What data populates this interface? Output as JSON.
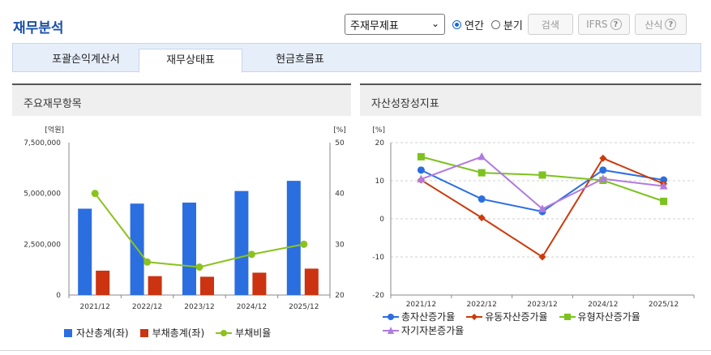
{
  "title": "재무분석",
  "toolbar": {
    "select_value": "주재무제표",
    "radio_annual": "연간",
    "radio_quarter": "분기",
    "search_label": "검색",
    "ifrs_label": "IFRS",
    "formula_label": "산식",
    "help_glyph": "?"
  },
  "tabs": [
    "포괄손익계산서",
    "재무상태표",
    "현금흐름표"
  ],
  "active_tab": 1,
  "left_panel": {
    "title": "주요재무항목"
  },
  "right_panel": {
    "title": "자산성장성지표"
  },
  "colors": {
    "blue": "#2b6ee0",
    "red": "#cc3311",
    "green": "#8cc21e",
    "orange": "#cc3a0a",
    "lime": "#7dc21f",
    "purple": "#b27ae0"
  },
  "chart_data": [
    {
      "type": "bar",
      "title": "",
      "y_unit_label": "[억원]",
      "y2_unit_label": "[%]",
      "categories": [
        "2021/12",
        "2022/12",
        "2023/12",
        "2024/12",
        "2025/12"
      ],
      "ylim": [
        0,
        7500000
      ],
      "yticks": [
        "7,500,000",
        "5,000,000",
        "2,500,000",
        "0"
      ],
      "y2lim": [
        20,
        50
      ],
      "y2ticks": [
        "50",
        "40",
        "30",
        "20"
      ],
      "series": [
        {
          "name": "자산총계(좌)",
          "type": "bar",
          "axis": "left",
          "values": [
            4250000,
            4500000,
            4550000,
            5120000,
            5620000
          ]
        },
        {
          "name": "부채총계(좌)",
          "type": "bar",
          "axis": "left",
          "values": [
            1200000,
            930000,
            900000,
            1100000,
            1300000
          ]
        },
        {
          "name": "부채비율",
          "type": "line",
          "axis": "right",
          "values": [
            40.0,
            26.5,
            25.5,
            28.0,
            30.0
          ]
        }
      ],
      "legend": "bottom"
    },
    {
      "type": "line",
      "title": "",
      "y_unit_label": "[%]",
      "categories": [
        "2021/12",
        "2022/12",
        "2023/12",
        "2024/12",
        "2025/12"
      ],
      "ylim": [
        -20,
        20
      ],
      "yticks": [
        "20",
        "10",
        "0",
        "-10",
        "-20"
      ],
      "series": [
        {
          "name": "총자산증가율",
          "marker": "circle",
          "values": [
            12.8,
            5.2,
            1.9,
            12.8,
            10.2
          ]
        },
        {
          "name": "유동자산증가율",
          "marker": "diamond",
          "values": [
            10.2,
            0.3,
            -10.0,
            15.9,
            9.2
          ]
        },
        {
          "name": "유형자산증가율",
          "marker": "square",
          "values": [
            16.3,
            12.1,
            11.5,
            10.1,
            4.6
          ]
        },
        {
          "name": "자기자본증가율",
          "marker": "triangle",
          "values": [
            10.4,
            16.3,
            2.6,
            10.5,
            8.6
          ]
        }
      ],
      "legend": "bottom"
    }
  ]
}
